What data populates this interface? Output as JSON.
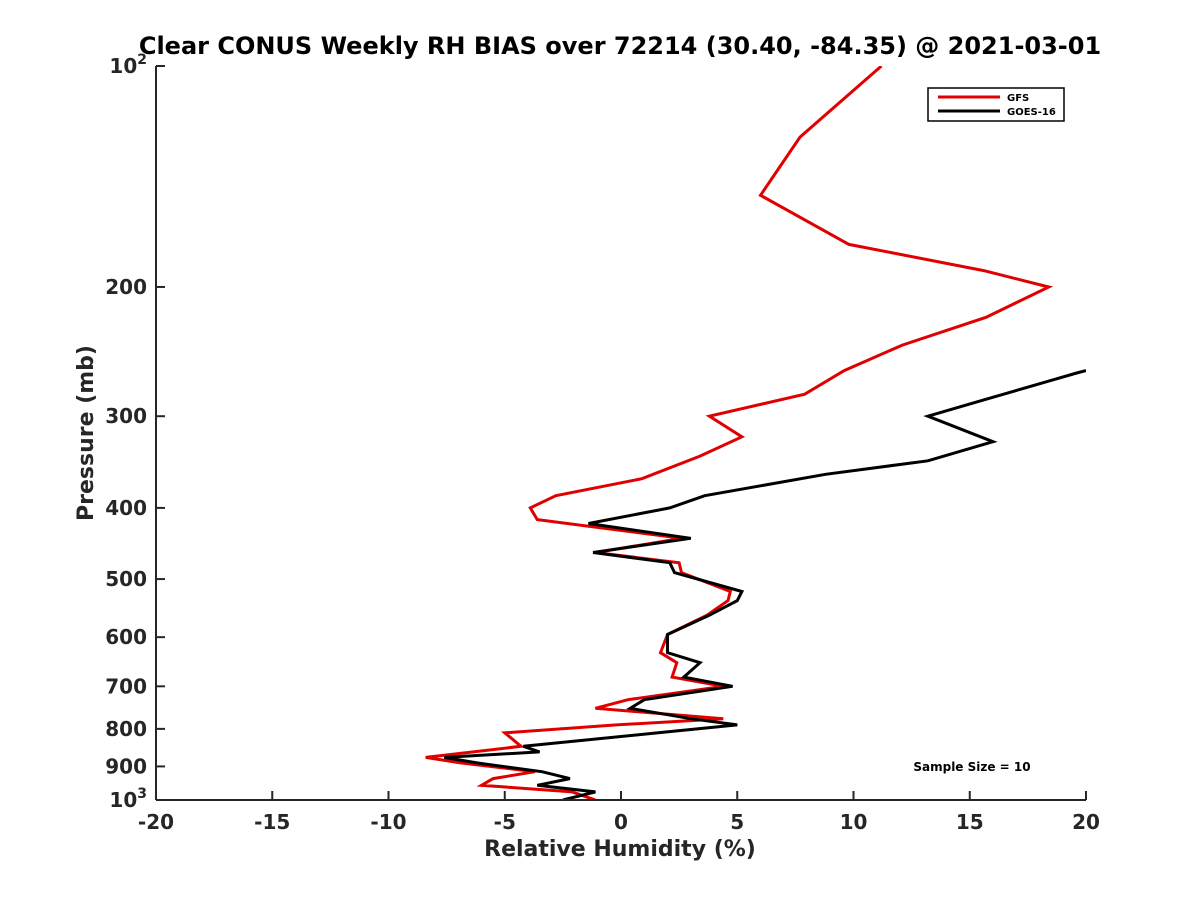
{
  "chart_data": {
    "type": "line",
    "title": "Clear CONUS Weekly RH BIAS over 72214 (30.40, -84.35) @ 2021-03-01",
    "xlabel": "Relative Humidity (%)",
    "ylabel": "Pressure (mb)",
    "xlim": [
      -20,
      20
    ],
    "ylim": [
      100,
      1000
    ],
    "yscale": "log",
    "yreverse": true,
    "grid": false,
    "xticks": [
      -20,
      -15,
      -10,
      -5,
      0,
      5,
      10,
      15,
      20
    ],
    "xtick_labels": [
      "-20",
      "-15",
      "-10",
      "-5",
      "0",
      "5",
      "10",
      "15",
      "20"
    ],
    "yticks": [
      {
        "value": 100,
        "base": "10",
        "exp": "2"
      },
      {
        "value": 200,
        "base": "200",
        "exp": ""
      },
      {
        "value": 300,
        "base": "300",
        "exp": ""
      },
      {
        "value": 400,
        "base": "400",
        "exp": ""
      },
      {
        "value": 500,
        "base": "500",
        "exp": ""
      },
      {
        "value": 600,
        "base": "600",
        "exp": ""
      },
      {
        "value": 700,
        "base": "700",
        "exp": ""
      },
      {
        "value": 800,
        "base": "800",
        "exp": ""
      },
      {
        "value": 900,
        "base": "900",
        "exp": ""
      },
      {
        "value": 1000,
        "base": "10",
        "exp": "3"
      }
    ],
    "legend_position": "top-right",
    "series": [
      {
        "name": "GFS",
        "color": "#e00000",
        "points": [
          [
            11.2,
            100
          ],
          [
            7.7,
            125
          ],
          [
            6.0,
            150
          ],
          [
            9.8,
            175
          ],
          [
            15.6,
            190
          ],
          [
            18.4,
            200
          ],
          [
            15.7,
            220
          ],
          [
            12.1,
            240
          ],
          [
            9.6,
            260
          ],
          [
            7.9,
            280
          ],
          [
            3.8,
            300
          ],
          [
            5.2,
            320
          ],
          [
            3.4,
            340
          ],
          [
            0.9,
            365
          ],
          [
            -2.8,
            385
          ],
          [
            -3.9,
            400
          ],
          [
            -3.6,
            415
          ],
          [
            2.6,
            440
          ],
          [
            -1.1,
            460
          ],
          [
            2.5,
            475
          ],
          [
            2.6,
            490
          ],
          [
            4.7,
            520
          ],
          [
            4.6,
            535
          ],
          [
            3.7,
            560
          ],
          [
            2.0,
            595
          ],
          [
            1.7,
            630
          ],
          [
            2.4,
            650
          ],
          [
            2.2,
            680
          ],
          [
            4.4,
            700
          ],
          [
            0.3,
            730
          ],
          [
            -1.1,
            750
          ],
          [
            4.4,
            775
          ],
          [
            -0.2,
            790
          ],
          [
            -5.0,
            810
          ],
          [
            -4.3,
            845
          ],
          [
            -8.4,
            875
          ],
          [
            -6.9,
            890
          ],
          [
            -3.7,
            915
          ],
          [
            -5.5,
            935
          ],
          [
            -6.0,
            955
          ],
          [
            -2.1,
            975
          ],
          [
            -1.1,
            1000
          ]
        ]
      },
      {
        "name": "GOES-16",
        "color": "#000000",
        "points": [
          [
            20.0,
            260
          ],
          [
            19.6,
            262
          ],
          [
            15.6,
            285
          ],
          [
            13.2,
            300
          ],
          [
            16.0,
            325
          ],
          [
            13.2,
            345
          ],
          [
            8.8,
            360
          ],
          [
            3.6,
            385
          ],
          [
            2.1,
            400
          ],
          [
            -1.4,
            420
          ],
          [
            3.0,
            440
          ],
          [
            -1.2,
            460
          ],
          [
            2.1,
            475
          ],
          [
            2.3,
            490
          ],
          [
            5.2,
            520
          ],
          [
            5.0,
            535
          ],
          [
            3.8,
            560
          ],
          [
            2.0,
            595
          ],
          [
            2.0,
            630
          ],
          [
            3.4,
            650
          ],
          [
            2.7,
            680
          ],
          [
            4.8,
            700
          ],
          [
            1.0,
            730
          ],
          [
            0.4,
            750
          ],
          [
            3.0,
            775
          ],
          [
            5.0,
            790
          ],
          [
            1.6,
            810
          ],
          [
            -4.2,
            845
          ],
          [
            -3.5,
            860
          ],
          [
            -7.6,
            875
          ],
          [
            -6.2,
            890
          ],
          [
            -3.4,
            915
          ],
          [
            -2.2,
            935
          ],
          [
            -3.6,
            955
          ],
          [
            -1.1,
            975
          ],
          [
            -2.5,
            1000
          ]
        ]
      }
    ],
    "annotations": [
      {
        "text": "Sample Size = 10"
      }
    ]
  }
}
